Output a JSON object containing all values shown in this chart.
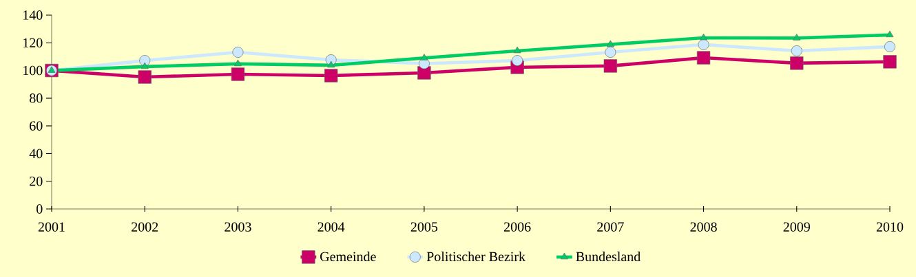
{
  "chart_data": {
    "type": "line",
    "categories": [
      "2001",
      "2002",
      "2003",
      "2004",
      "2005",
      "2006",
      "2007",
      "2008",
      "2009",
      "2010"
    ],
    "series": [
      {
        "name": "Gemeinde",
        "color": "#cc0066",
        "marker": "square",
        "values": [
          100,
          95.3,
          97.3,
          96.3,
          98.3,
          102.3,
          103.3,
          109.2,
          105.3,
          106.3
        ]
      },
      {
        "name": "Politischer Bezirk",
        "color": "#cce8ff",
        "marker": "circle",
        "values": [
          100,
          107.2,
          113.2,
          107.7,
          105,
          107.2,
          113.2,
          118.7,
          114.2,
          117.2
        ]
      },
      {
        "name": "Bundesland",
        "color": "#00cc66",
        "marker": "triangle",
        "values": [
          100,
          102.8,
          104.8,
          103.8,
          109,
          114.2,
          118.8,
          123.6,
          123.4,
          125.7
        ]
      }
    ],
    "ylim": [
      0,
      140
    ],
    "yticks": [
      0,
      20,
      40,
      60,
      80,
      100,
      120,
      140
    ],
    "grid": false,
    "legend": "bottom",
    "line_style": "solid"
  }
}
